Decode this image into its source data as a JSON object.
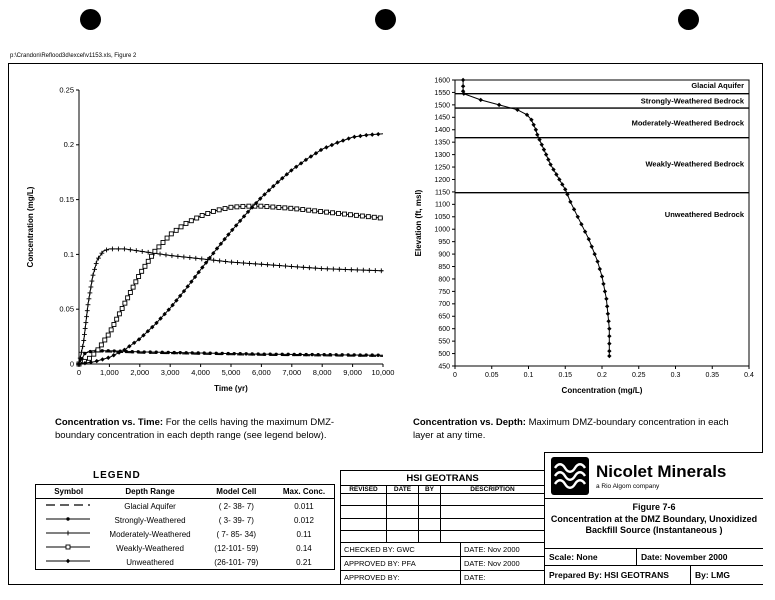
{
  "page": {
    "filepath": "p:\\Crandon\\Reflood3d\\excel\\v1153.xls, Figure 2"
  },
  "captions": {
    "left_title": "Concentration vs. Time:",
    "left_text": "For the cells having the maximum DMZ-boundary concentration in each depth range (see legend below).",
    "right_title": "Concentration vs. Depth:",
    "right_text": "Maximum DMZ-boundary concentration in each layer at any time."
  },
  "legend": {
    "title": "LEGEND",
    "headers": [
      "Symbol",
      "Depth Range",
      "Model Cell",
      "Max. Conc."
    ],
    "rows": [
      {
        "symbol": "dash",
        "depth_range": "Glacial Aquifer",
        "model_cell": "( 2- 38-  7)",
        "max_conc": "0.011"
      },
      {
        "symbol": "circle",
        "depth_range": "Strongly-Weathered",
        "model_cell": "( 3- 39-  7)",
        "max_conc": "0.012"
      },
      {
        "symbol": "plus",
        "depth_range": "Moderately-Weathered",
        "model_cell": "( 7- 85- 34)",
        "max_conc": "0.11"
      },
      {
        "symbol": "square",
        "depth_range": "Weakly-Weathered",
        "model_cell": "(12-101- 59)",
        "max_conc": "0.14"
      },
      {
        "symbol": "diamond",
        "depth_range": "Unweathered",
        "model_cell": "(26-101- 79)",
        "max_conc": "0.21"
      }
    ]
  },
  "revision_block": {
    "title": "HSI GEOTRANS",
    "headers": [
      "REVISED",
      "DATE",
      "BY",
      "DESCRIPTION"
    ],
    "footer": [
      {
        "left": "CHECKED BY: GWC",
        "right": "DATE:  Nov 2000"
      },
      {
        "left": "APPROVED BY: PFA",
        "right": "DATE:  Nov 2000"
      },
      {
        "left": "APPROVED BY:",
        "right": "DATE:"
      }
    ]
  },
  "title_block": {
    "company": "Nicolet Minerals",
    "company_sub": "a Rio Algom company",
    "figure_no": "Figure 7-6",
    "figure_title_line1": "Concentration at the DMZ Boundary, Unoxidized",
    "figure_title_line2": "Backfill Source (Instantaneous )",
    "scale_label": "Scale:  None",
    "date_label": "Date: November 2000",
    "prepared_label": "Prepared By:  HSI GEOTRANS",
    "by_label": "By:  LMG"
  },
  "chart_data": [
    {
      "type": "line",
      "title": "Concentration vs. Time",
      "xlabel": "Time (yr)",
      "ylabel": "Concentration (mg/L)",
      "xlim": [
        0,
        10000
      ],
      "ylim": [
        0,
        0.25
      ],
      "grid": false,
      "legend_position": "separate table below figure",
      "xticks": [
        [
          0,
          "0"
        ],
        [
          1000,
          "1,000"
        ],
        [
          2000,
          "2,000"
        ],
        [
          3000,
          "3,000"
        ],
        [
          4000,
          "4,000"
        ],
        [
          5000,
          "5,000"
        ],
        [
          6000,
          "6,000"
        ],
        [
          7000,
          "7,000"
        ],
        [
          8000,
          "8,000"
        ],
        [
          9000,
          "9,000"
        ],
        [
          10000,
          "10,000"
        ]
      ],
      "yticks": [
        [
          0,
          "0"
        ],
        [
          0.05,
          "0.05"
        ],
        [
          0.1,
          "0.1"
        ],
        [
          0.15,
          "0.15"
        ],
        [
          0.2,
          "0.2"
        ],
        [
          0.25,
          "0.25"
        ]
      ],
      "series": [
        {
          "name": "Glacial Aquifer",
          "marker": "none",
          "dash": true,
          "max_conc": 0.011,
          "points": [
            [
              0,
              0
            ],
            [
              150,
              0.009
            ],
            [
              300,
              0.011
            ],
            [
              1000,
              0.011
            ],
            [
              2000,
              0.01
            ],
            [
              4000,
              0.009
            ],
            [
              6000,
              0.008
            ],
            [
              8000,
              0.0075
            ],
            [
              10000,
              0.007
            ]
          ]
        },
        {
          "name": "Strongly-Weathered",
          "marker": "circle",
          "dash": false,
          "max_conc": 0.012,
          "points": [
            [
              0,
              0
            ],
            [
              200,
              0.01
            ],
            [
              450,
              0.012
            ],
            [
              1000,
              0.012
            ],
            [
              2000,
              0.011
            ],
            [
              4000,
              0.01
            ],
            [
              6000,
              0.009
            ],
            [
              8000,
              0.0085
            ],
            [
              10000,
              0.008
            ]
          ]
        },
        {
          "name": "Moderately-Weathered",
          "marker": "plus",
          "dash": false,
          "max_conc": 0.11,
          "points": [
            [
              0,
              0
            ],
            [
              150,
              0.02
            ],
            [
              300,
              0.055
            ],
            [
              450,
              0.08
            ],
            [
              600,
              0.095
            ],
            [
              800,
              0.103
            ],
            [
              1000,
              0.105
            ],
            [
              1500,
              0.105
            ],
            [
              2000,
              0.103
            ],
            [
              3000,
              0.099
            ],
            [
              4000,
              0.096
            ],
            [
              5000,
              0.093
            ],
            [
              6000,
              0.091
            ],
            [
              7000,
              0.089
            ],
            [
              8000,
              0.087
            ],
            [
              9000,
              0.086
            ],
            [
              10000,
              0.085
            ]
          ]
        },
        {
          "name": "Weakly-Weathered",
          "marker": "square",
          "dash": false,
          "max_conc": 0.14,
          "points": [
            [
              0,
              0
            ],
            [
              300,
              0.004
            ],
            [
              600,
              0.012
            ],
            [
              1000,
              0.028
            ],
            [
              1500,
              0.055
            ],
            [
              2000,
              0.082
            ],
            [
              2500,
              0.103
            ],
            [
              3000,
              0.118
            ],
            [
              3500,
              0.128
            ],
            [
              4000,
              0.135
            ],
            [
              4500,
              0.14
            ],
            [
              5000,
              0.143
            ],
            [
              5500,
              0.144
            ],
            [
              6000,
              0.144
            ],
            [
              7000,
              0.142
            ],
            [
              8000,
              0.139
            ],
            [
              9000,
              0.136
            ],
            [
              10000,
              0.133
            ]
          ]
        },
        {
          "name": "Unweathered",
          "marker": "diamond",
          "dash": false,
          "max_conc": 0.21,
          "points": [
            [
              0,
              0
            ],
            [
              500,
              0.002
            ],
            [
              1000,
              0.006
            ],
            [
              1500,
              0.013
            ],
            [
              2000,
              0.023
            ],
            [
              2500,
              0.036
            ],
            [
              3000,
              0.051
            ],
            [
              3500,
              0.068
            ],
            [
              4000,
              0.086
            ],
            [
              4500,
              0.104
            ],
            [
              5000,
              0.121
            ],
            [
              5500,
              0.137
            ],
            [
              6000,
              0.152
            ],
            [
              6500,
              0.165
            ],
            [
              7000,
              0.177
            ],
            [
              7500,
              0.187
            ],
            [
              8000,
              0.196
            ],
            [
              8500,
              0.202
            ],
            [
              9000,
              0.207
            ],
            [
              9500,
              0.209
            ],
            [
              10000,
              0.21
            ]
          ]
        }
      ]
    },
    {
      "type": "line",
      "title": "Concentration vs. Depth",
      "xlabel": "Concentration (mg/L)",
      "ylabel": "Elevation (ft, msl)",
      "xlim": [
        0,
        0.4
      ],
      "ylim": [
        450,
        1600
      ],
      "grid": false,
      "xticks": [
        [
          0,
          "0"
        ],
        [
          0.05,
          "0.05"
        ],
        [
          0.1,
          "0.1"
        ],
        [
          0.15,
          "0.15"
        ],
        [
          0.2,
          "0.2"
        ],
        [
          0.25,
          "0.25"
        ],
        [
          0.3,
          "0.3"
        ],
        [
          0.35,
          "0.35"
        ],
        [
          0.4,
          "0.4"
        ]
      ],
      "yticks": [
        [
          1600,
          "1600"
        ],
        [
          1550,
          "1550"
        ],
        [
          1500,
          "1500"
        ],
        [
          1450,
          "1450"
        ],
        [
          1400,
          "1400"
        ],
        [
          1350,
          "1350"
        ],
        [
          1300,
          "1300"
        ],
        [
          1250,
          "1250"
        ],
        [
          1200,
          "1200"
        ],
        [
          1150,
          "1150"
        ],
        [
          1100,
          "1100"
        ],
        [
          1050,
          "1050"
        ],
        [
          1000,
          "1000"
        ],
        [
          950,
          "950"
        ],
        [
          900,
          "900"
        ],
        [
          850,
          "850"
        ],
        [
          800,
          "800"
        ],
        [
          750,
          "750"
        ],
        [
          700,
          "700"
        ],
        [
          650,
          "650"
        ],
        [
          600,
          "600"
        ],
        [
          550,
          "550"
        ],
        [
          500,
          "500"
        ],
        [
          450,
          "450"
        ]
      ],
      "layers": [
        {
          "label": "Glacial Aquifer",
          "label_elev": 1578,
          "boundary_below": 1545
        },
        {
          "label": "Strongly-Weathered Bedrock",
          "label_elev": 1516,
          "boundary_below": 1487
        },
        {
          "label": "Moderately-Weathered Bedrock",
          "label_elev": 1428,
          "boundary_below": 1368
        },
        {
          "label": "Weakly-Weathered Bedrock",
          "label_elev": 1262,
          "boundary_below": 1147
        },
        {
          "label": "Unweathered Bedrock",
          "label_elev": 1060,
          "boundary_below": null
        }
      ],
      "series": [
        {
          "name": "Maximum DMZ-boundary concentration",
          "marker": "diamond",
          "dash": false,
          "points": [
            [
              0.011,
              1600
            ],
            [
              0.011,
              1575
            ],
            [
              0.011,
              1555
            ],
            [
              0.012,
              1545
            ],
            [
              0.035,
              1520
            ],
            [
              0.06,
              1500
            ],
            [
              0.085,
              1480
            ],
            [
              0.098,
              1460
            ],
            [
              0.104,
              1440
            ],
            [
              0.107,
              1420
            ],
            [
              0.11,
              1400
            ],
            [
              0.112,
              1380
            ],
            [
              0.115,
              1360
            ],
            [
              0.118,
              1340
            ],
            [
              0.121,
              1320
            ],
            [
              0.124,
              1300
            ],
            [
              0.127,
              1280
            ],
            [
              0.13,
              1260
            ],
            [
              0.134,
              1240
            ],
            [
              0.138,
              1220
            ],
            [
              0.142,
              1200
            ],
            [
              0.146,
              1180
            ],
            [
              0.15,
              1160
            ],
            [
              0.153,
              1140
            ],
            [
              0.157,
              1110
            ],
            [
              0.162,
              1080
            ],
            [
              0.167,
              1050
            ],
            [
              0.172,
              1020
            ],
            [
              0.177,
              990
            ],
            [
              0.182,
              960
            ],
            [
              0.186,
              930
            ],
            [
              0.19,
              900
            ],
            [
              0.194,
              870
            ],
            [
              0.197,
              840
            ],
            [
              0.2,
              810
            ],
            [
              0.202,
              780
            ],
            [
              0.204,
              750
            ],
            [
              0.206,
              720
            ],
            [
              0.207,
              690
            ],
            [
              0.208,
              660
            ],
            [
              0.209,
              630
            ],
            [
              0.21,
              600
            ],
            [
              0.21,
              570
            ],
            [
              0.21,
              540
            ],
            [
              0.21,
              510
            ],
            [
              0.21,
              490
            ]
          ]
        }
      ]
    }
  ]
}
